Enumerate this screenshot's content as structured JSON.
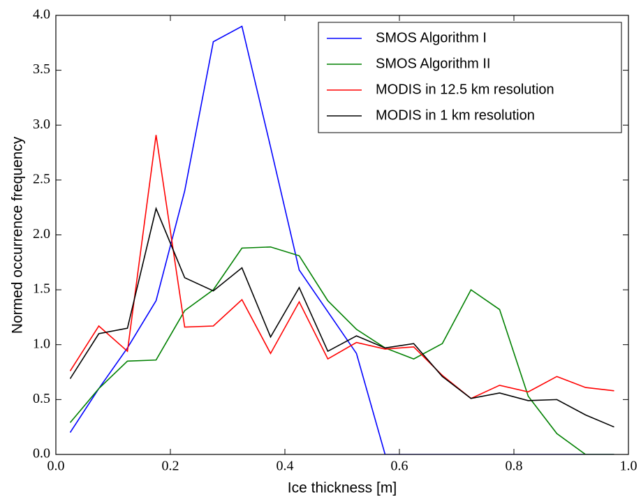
{
  "chart_data": {
    "type": "line",
    "xlabel": "Ice thickness [m]",
    "ylabel": "Normed occurrence frequency",
    "x": [
      0.025,
      0.075,
      0.125,
      0.175,
      0.225,
      0.275,
      0.325,
      0.375,
      0.425,
      0.475,
      0.525,
      0.575,
      0.625,
      0.675,
      0.725,
      0.775,
      0.825,
      0.875,
      0.925,
      0.975
    ],
    "series": [
      {
        "name": "SMOS Algorithm I",
        "color": "#0000ff",
        "values": [
          0.2,
          0.6,
          0.97,
          1.4,
          2.4,
          3.76,
          3.9,
          2.8,
          1.68,
          1.3,
          0.92,
          0.0,
          0.0,
          0.0,
          0.0,
          0.0,
          0.0,
          0.0,
          0.0,
          0.0
        ]
      },
      {
        "name": "SMOS Algorithm II",
        "color": "#008000",
        "values": [
          0.29,
          0.6,
          0.85,
          0.86,
          1.31,
          1.5,
          1.88,
          1.89,
          1.81,
          1.4,
          1.14,
          0.97,
          0.87,
          1.01,
          1.5,
          1.32,
          0.53,
          0.19,
          0.0,
          0.0
        ]
      },
      {
        "name": "MODIS in 12.5 km resolution",
        "color": "#ff0000",
        "values": [
          0.76,
          1.17,
          0.94,
          2.91,
          1.16,
          1.17,
          1.41,
          0.92,
          1.39,
          0.87,
          1.02,
          0.96,
          0.98,
          0.72,
          0.51,
          0.63,
          0.57,
          0.71,
          0.61,
          0.58
        ]
      },
      {
        "name": "MODIS in 1 km resolution",
        "color": "#000000",
        "values": [
          0.69,
          1.1,
          1.15,
          2.24,
          1.61,
          1.49,
          1.7,
          1.07,
          1.52,
          0.94,
          1.08,
          0.97,
          1.01,
          0.71,
          0.51,
          0.56,
          0.49,
          0.5,
          0.36,
          0.25
        ]
      }
    ],
    "xlim": [
      0,
      1
    ],
    "xticks": [
      {
        "value": 0,
        "label": "0.0"
      },
      0.2,
      0.4,
      0.6,
      0.8,
      {
        "value": 1,
        "label": "1.0"
      }
    ],
    "ylim": [
      0,
      4
    ],
    "yticks": [
      {
        "value": 0,
        "label": "0.0"
      },
      0.5,
      {
        "value": 1,
        "label": "1.0"
      },
      1.5,
      {
        "value": 2,
        "label": "2.0"
      },
      2.5,
      {
        "value": 3,
        "label": "3.0"
      },
      3.5,
      {
        "value": 4,
        "label": "4.0"
      }
    ],
    "legend": "upper right",
    "grid": false
  }
}
